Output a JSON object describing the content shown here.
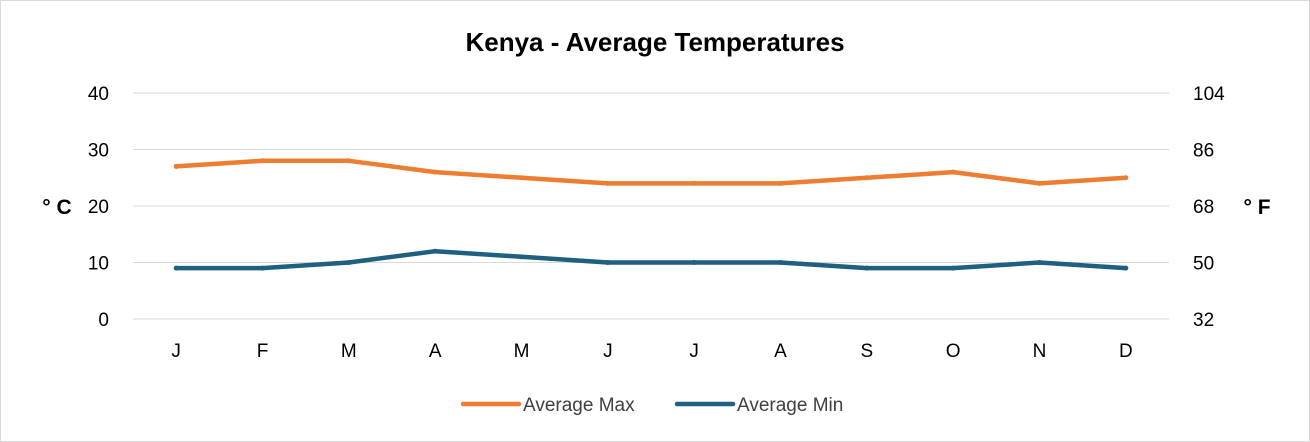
{
  "chart_data": {
    "type": "line",
    "title": "Kenya - Average Temperatures",
    "categories": [
      "J",
      "F",
      "M",
      "A",
      "M",
      "J",
      "J",
      "A",
      "S",
      "O",
      "N",
      "D"
    ],
    "series": [
      {
        "name": "Average Max",
        "color": "#ED7D31",
        "values": [
          27,
          28,
          28,
          26,
          25,
          24,
          24,
          24,
          25,
          26,
          24,
          25
        ]
      },
      {
        "name": "Average Min",
        "color": "#1F5F7F",
        "values": [
          9,
          9,
          10,
          12,
          11,
          10,
          10,
          10,
          9,
          9,
          10,
          9
        ]
      }
    ],
    "ylabel": "° C",
    "y2label": "° F",
    "ylim": [
      0,
      40
    ],
    "yticks": [
      "0",
      "10",
      "20",
      "30",
      "40"
    ],
    "y2lim": [
      32,
      104
    ],
    "y2ticks": [
      "32",
      "50",
      "68",
      "86",
      "104"
    ],
    "grid": true,
    "legend": "bottom"
  }
}
